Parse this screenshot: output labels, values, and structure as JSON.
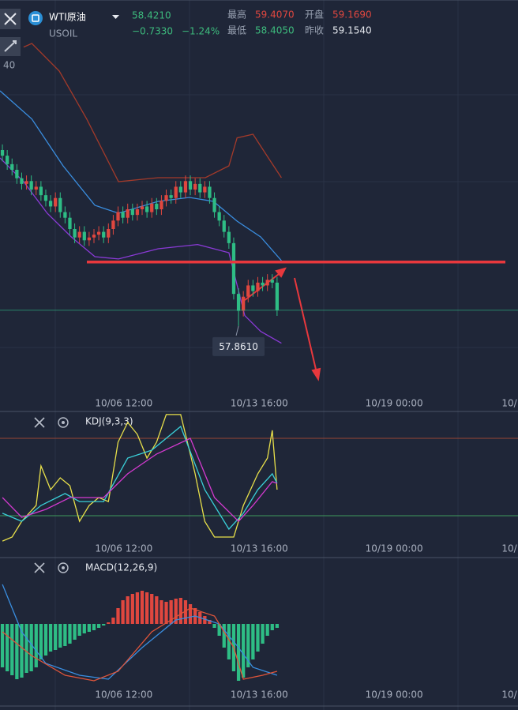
{
  "header": {
    "name": "WTI原油",
    "symbol": "USOIL",
    "price": "58.4210",
    "change": "−0.7330",
    "change_pct": "−1.24%",
    "high_label": "最高",
    "high": "59.4070",
    "open_label": "开盘",
    "open": "59.1690",
    "low_label": "最低",
    "low": "58.4050",
    "prev_label": "昨收",
    "prev_close": "59.1540",
    "axis_fragment": "40"
  },
  "chart_data": [
    {
      "type": "candlestick",
      "up_color": "#e0473f",
      "down_color": "#2ebd85",
      "xlim": [
        -0.5,
        107
      ],
      "ylim": [
        55.42,
        69.42
      ],
      "xticks": [
        {
          "value": 25.2,
          "label": "10/06 12:00"
        },
        {
          "value": 53.3,
          "label": "10/13 16:00"
        },
        {
          "value": 81.3,
          "label": "10/19 00:00"
        },
        {
          "value": 105.2,
          "label": "10/"
        }
      ],
      "open": [
        64.1,
        63.9,
        63.6,
        63.4,
        63.1,
        62.9,
        63.0,
        62.7,
        62.8,
        62.5,
        62.3,
        62.1,
        62.4,
        61.9,
        61.7,
        61.3,
        61.0,
        61.2,
        60.9,
        61.0,
        61.1,
        61.2,
        61.0,
        61.3,
        61.6,
        61.9,
        61.7,
        62.0,
        61.8,
        62.0,
        62.1,
        61.9,
        62.2,
        62.0,
        62.3,
        62.5,
        62.4,
        62.8,
        62.6,
        63.0,
        62.7,
        62.9,
        62.6,
        62.8,
        62.4,
        61.9,
        61.6,
        61.2,
        60.8,
        59.0,
        58.4,
        58.9,
        59.3,
        59.1,
        59.4,
        59.3,
        59.5,
        59.4
      ],
      "high": [
        64.3,
        64.1,
        63.8,
        63.6,
        63.3,
        63.2,
        63.2,
        63.0,
        63.0,
        62.7,
        62.5,
        62.6,
        62.6,
        62.1,
        61.9,
        61.5,
        61.4,
        61.4,
        61.2,
        61.3,
        61.4,
        61.4,
        61.5,
        61.8,
        62.1,
        62.1,
        62.2,
        62.2,
        62.2,
        62.3,
        62.3,
        62.4,
        62.4,
        62.5,
        62.7,
        62.7,
        63.0,
        63.0,
        63.2,
        63.2,
        63.1,
        63.1,
        63.0,
        63.0,
        62.6,
        62.1,
        61.8,
        61.4,
        61.0,
        59.2,
        59.1,
        59.5,
        59.5,
        59.6,
        59.6,
        59.7,
        59.7,
        59.6
      ],
      "low": [
        63.7,
        63.4,
        63.2,
        62.9,
        62.7,
        62.7,
        62.5,
        62.5,
        62.3,
        62.1,
        61.9,
        61.9,
        61.7,
        61.5,
        61.1,
        60.8,
        60.8,
        60.7,
        60.7,
        60.8,
        60.9,
        60.8,
        60.8,
        61.1,
        61.4,
        61.5,
        61.5,
        61.6,
        61.6,
        61.8,
        61.7,
        61.7,
        61.8,
        61.8,
        62.1,
        62.2,
        62.2,
        62.4,
        62.4,
        62.5,
        62.5,
        62.4,
        62.4,
        62.2,
        61.7,
        61.4,
        61.0,
        60.6,
        58.8,
        57.861,
        58.2,
        58.7,
        58.9,
        58.9,
        59.1,
        59.1,
        59.2,
        58.221
      ],
      "close": [
        63.9,
        63.6,
        63.4,
        63.1,
        62.9,
        63.0,
        62.7,
        62.8,
        62.5,
        62.3,
        62.1,
        62.4,
        61.9,
        61.7,
        61.3,
        61.0,
        61.2,
        60.9,
        61.0,
        61.1,
        61.2,
        61.0,
        61.3,
        61.6,
        61.9,
        61.7,
        62.0,
        61.8,
        62.0,
        62.1,
        61.9,
        62.2,
        62.0,
        62.3,
        62.5,
        62.4,
        62.8,
        62.6,
        63.0,
        62.7,
        62.9,
        62.6,
        62.8,
        62.4,
        61.9,
        61.6,
        61.2,
        60.8,
        59.0,
        58.4,
        58.9,
        59.3,
        59.1,
        59.4,
        59.3,
        59.5,
        59.4,
        58.421
      ],
      "low_label": "57.8610",
      "hline": {
        "value": 60.13,
        "color": "#e8383d"
      },
      "series": [
        {
          "color": "#a33a2a",
          "x": [
            4.4,
            6.1,
            11.8,
            17.5,
            24.1,
            32.3,
            42.1,
            47.0,
            48.7,
            52.0,
            55.2,
            57.9
          ],
          "values": [
            67.75,
            67.88,
            66.9,
            65.2,
            62.98,
            63.12,
            63.12,
            63.54,
            64.53,
            64.66,
            63.82,
            63.12
          ]
        },
        {
          "color": "#3a8ee0",
          "x": [
            -0.5,
            6.1,
            12.6,
            19.2,
            24.1,
            32.3,
            38.8,
            43.8,
            48.7,
            53.6,
            57.9
          ],
          "values": [
            66.2,
            65.2,
            63.54,
            62.14,
            61.86,
            62.28,
            62.42,
            62.28,
            61.58,
            61.02,
            60.18
          ]
        },
        {
          "color": "#8a3ad6",
          "x": [
            -0.5,
            4.4,
            9.3,
            14.3,
            19.2,
            24.1,
            32.3,
            40.5,
            47.0,
            50.3,
            53.6,
            57.9
          ],
          "values": [
            63.82,
            62.98,
            61.86,
            61.02,
            60.32,
            60.24,
            60.6,
            60.75,
            60.46,
            58.23,
            57.67,
            57.25
          ]
        }
      ]
    },
    {
      "type": "line",
      "title": "KDJ(9,3,3)",
      "xlim": [
        -0.5,
        107
      ],
      "ylim": [
        -11.8,
        100.2
      ],
      "xticks": [
        {
          "value": 25.2,
          "label": "10/06 12:00"
        },
        {
          "value": 53.3,
          "label": "10/13 16:00"
        },
        {
          "value": 81.3,
          "label": "10/19 00:00"
        },
        {
          "value": 105.2,
          "label": "10/"
        }
      ],
      "hlines": [
        {
          "value": 80,
          "color": "#9a4535"
        },
        {
          "value": 20,
          "color": "#3f9a5c"
        }
      ],
      "series": [
        {
          "color": "#e8e04a",
          "x": [
            0,
            2,
            4,
            7,
            8,
            10,
            12,
            14,
            16,
            18,
            20,
            22,
            24,
            26,
            28,
            30,
            32,
            34,
            37,
            40,
            42,
            44,
            48,
            50,
            53,
            55,
            56,
            57
          ],
          "values": [
            0.4,
            3.5,
            15.7,
            28,
            58.6,
            40.2,
            49.4,
            43.3,
            15.7,
            28,
            34.1,
            31,
            77,
            92.3,
            83.1,
            64.7,
            77,
            98.4,
            98.4,
            52.5,
            15.7,
            3.5,
            3.5,
            28,
            52.5,
            64.7,
            86.2,
            40.2
          ]
        },
        {
          "color": "#3ad0d8",
          "x": [
            0,
            4,
            8,
            13,
            16,
            21,
            26,
            31,
            37,
            42,
            47,
            50,
            53,
            56,
            57
          ],
          "values": [
            21.9,
            15.7,
            28,
            37.2,
            31,
            31,
            64.7,
            70.8,
            89.2,
            40.2,
            9.6,
            21.9,
            40.2,
            52.5,
            45.1
          ]
        },
        {
          "color": "#d43ad0",
          "x": [
            0,
            4,
            9,
            14,
            21,
            26,
            32,
            39,
            44,
            49,
            52,
            56,
            57
          ],
          "values": [
            34.1,
            18.8,
            24.9,
            34.1,
            34.1,
            52.5,
            67.8,
            80,
            34.1,
            15.7,
            28,
            46.4,
            45.1
          ]
        }
      ]
    },
    {
      "type": "bar",
      "title": "MACD(12,26,9)",
      "xlim": [
        -0.5,
        107
      ],
      "ylim": [
        -1.0,
        0.83
      ],
      "up_color": "#e0473f",
      "down_color": "#2ebd85",
      "xticks": [
        {
          "value": 25.2,
          "label": "10/06 12:00"
        },
        {
          "value": 53.3,
          "label": "10/13 16:00"
        },
        {
          "value": 81.3,
          "label": "10/19 00:00"
        },
        {
          "value": 105.2,
          "label": "10/"
        }
      ],
      "values": [
        -0.55,
        -0.6,
        -0.65,
        -0.7,
        -0.68,
        -0.62,
        -0.6,
        -0.55,
        -0.45,
        -0.4,
        -0.35,
        -0.33,
        -0.3,
        -0.28,
        -0.25,
        -0.2,
        -0.15,
        -0.12,
        -0.1,
        -0.08,
        -0.05,
        -0.02,
        0.02,
        0.08,
        0.2,
        0.3,
        0.35,
        0.38,
        0.4,
        0.42,
        0.4,
        0.38,
        0.35,
        0.3,
        0.28,
        0.3,
        0.32,
        0.33,
        0.3,
        0.25,
        0.2,
        0.15,
        0.1,
        0.05,
        -0.05,
        -0.15,
        -0.3,
        -0.45,
        -0.6,
        -0.72,
        -0.68,
        -0.55,
        -0.45,
        -0.35,
        -0.25,
        -0.15,
        -0.08,
        -0.05
      ],
      "series": [
        {
          "color": "#3a8ee0",
          "x": [
            0,
            4,
            9,
            16,
            22,
            29,
            36,
            40,
            45,
            49,
            52,
            57
          ],
          "values": [
            0.5,
            -0.1,
            -0.5,
            -0.65,
            -0.7,
            -0.3,
            0.05,
            0.1,
            0,
            -0.3,
            -0.55,
            -0.65
          ]
        },
        {
          "color": "#e0553a",
          "x": [
            0,
            6,
            13,
            19,
            24,
            31,
            39,
            44,
            48,
            50,
            54,
            57
          ],
          "values": [
            -0.1,
            -0.4,
            -0.65,
            -0.72,
            -0.6,
            -0.1,
            0.2,
            0.1,
            -0.3,
            -0.7,
            -0.65,
            -0.6
          ]
        }
      ]
    }
  ]
}
